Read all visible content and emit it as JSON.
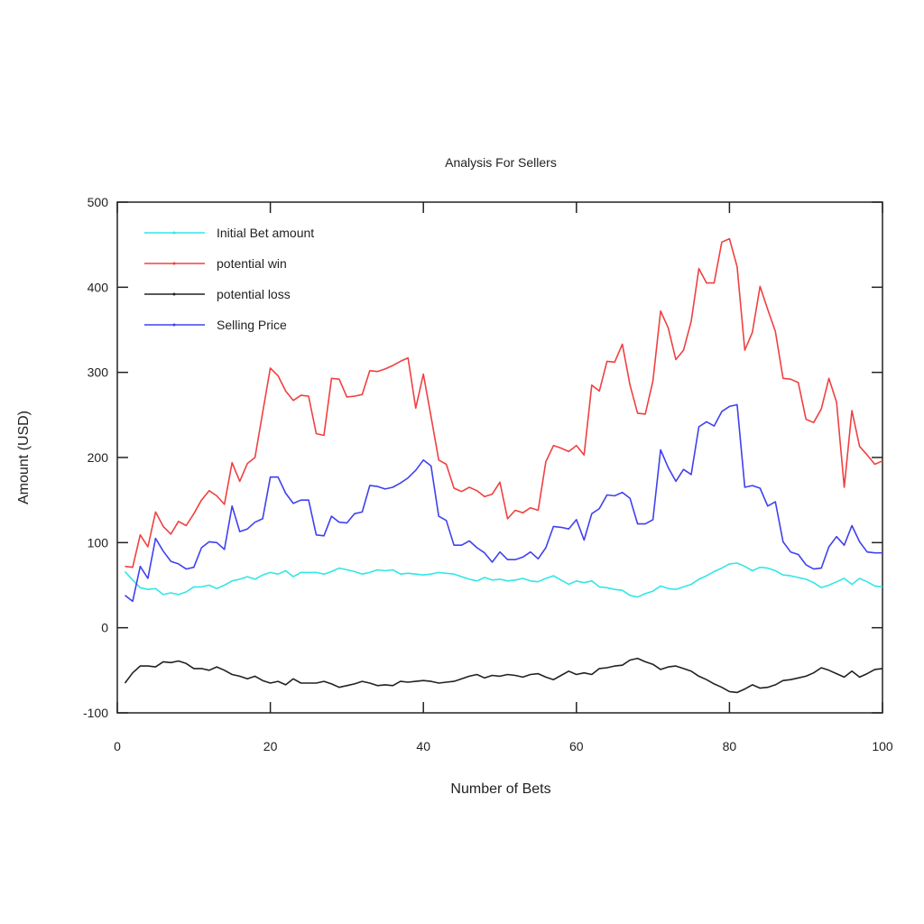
{
  "chart_data": {
    "type": "line",
    "title": "Analysis For Sellers",
    "xlabel": "Number of Bets",
    "ylabel": "Amount (USD)",
    "xlim": [
      0,
      100
    ],
    "ylim": [
      -100,
      500
    ],
    "xticks": [
      0,
      20,
      40,
      60,
      80,
      100
    ],
    "yticks": [
      -100,
      0,
      100,
      200,
      300,
      400,
      500
    ],
    "grid": false,
    "legend_position": "top-left",
    "x": [
      1,
      2,
      3,
      4,
      5,
      6,
      7,
      8,
      9,
      10,
      11,
      12,
      13,
      14,
      15,
      16,
      17,
      18,
      19,
      20,
      21,
      22,
      23,
      24,
      25,
      26,
      27,
      28,
      29,
      30,
      31,
      32,
      33,
      34,
      35,
      36,
      37,
      38,
      39,
      40,
      41,
      42,
      43,
      44,
      45,
      46,
      47,
      48,
      49,
      50,
      51,
      52,
      53,
      54,
      55,
      56,
      57,
      58,
      59,
      60,
      61,
      62,
      63,
      64,
      65,
      66,
      67,
      68,
      69,
      70,
      71,
      72,
      73,
      74,
      75,
      76,
      77,
      78,
      79,
      80,
      81,
      82,
      83,
      84,
      85,
      86,
      87,
      88,
      89,
      90,
      91,
      92,
      93,
      94,
      95,
      96,
      97,
      98,
      99,
      100
    ],
    "series": [
      {
        "name": "Initial Bet amount",
        "color": "#33e6e6",
        "values": [
          66,
          56,
          47,
          45,
          46,
          39,
          41,
          39,
          42,
          48,
          48,
          50,
          46,
          50,
          55,
          57,
          60,
          57,
          62,
          65,
          63,
          67,
          60,
          65,
          65,
          65,
          63,
          66,
          70,
          68,
          66,
          63,
          65,
          68,
          67,
          68,
          63,
          64,
          63,
          62,
          63,
          65,
          64,
          63,
          60,
          57,
          55,
          59,
          56,
          57,
          55,
          56,
          58,
          55,
          54,
          58,
          61,
          56,
          51,
          55,
          53,
          55,
          48,
          47,
          45,
          44,
          38,
          36,
          40,
          43,
          49,
          46,
          45,
          48,
          51,
          57,
          61,
          66,
          70,
          75,
          76,
          72,
          67,
          71,
          70,
          67,
          62,
          61,
          59,
          57,
          53,
          47,
          50,
          54,
          58,
          51,
          58,
          54,
          49,
          48
        ]
      },
      {
        "name": "potential win",
        "color": "#f04040",
        "values": [
          72,
          71,
          109,
          95,
          136,
          119,
          110,
          125,
          120,
          134,
          150,
          161,
          155,
          145,
          194,
          172,
          193,
          200,
          253,
          305,
          296,
          278,
          267,
          273,
          272,
          228,
          226,
          293,
          292,
          271,
          272,
          274,
          302,
          301,
          304,
          308,
          313,
          317,
          258,
          298,
          248,
          197,
          192,
          164,
          160,
          165,
          161,
          154,
          157,
          171,
          128,
          138,
          135,
          141,
          138,
          195,
          214,
          211,
          207,
          214,
          203,
          285,
          278,
          313,
          312,
          333,
          285,
          252,
          251,
          290,
          372,
          352,
          315,
          326,
          360,
          422,
          405,
          405,
          453,
          457,
          424,
          326,
          347,
          401,
          374,
          348,
          293,
          292,
          288,
          245,
          241,
          257,
          293,
          265,
          165,
          255,
          213,
          203,
          192,
          196
        ]
      },
      {
        "name": "potential loss",
        "color": "#222222",
        "values": [
          -65,
          -53,
          -45,
          -45,
          -46,
          -40,
          -41,
          -39,
          -42,
          -48,
          -48,
          -50,
          -46,
          -50,
          -55,
          -57,
          -60,
          -57,
          -62,
          -65,
          -63,
          -67,
          -60,
          -65,
          -65,
          -65,
          -63,
          -66,
          -70,
          -68,
          -66,
          -63,
          -65,
          -68,
          -67,
          -68,
          -63,
          -64,
          -63,
          -62,
          -63,
          -65,
          -64,
          -63,
          -60,
          -57,
          -55,
          -59,
          -56,
          -57,
          -55,
          -56,
          -58,
          -55,
          -54,
          -58,
          -61,
          -56,
          -51,
          -55,
          -53,
          -55,
          -48,
          -47,
          -45,
          -44,
          -38,
          -36,
          -40,
          -43,
          -49,
          -46,
          -45,
          -48,
          -51,
          -57,
          -61,
          -66,
          -70,
          -75,
          -76,
          -72,
          -67,
          -71,
          -70,
          -67,
          -62,
          -61,
          -59,
          -57,
          -53,
          -47,
          -50,
          -54,
          -58,
          -51,
          -58,
          -54,
          -49,
          -48
        ]
      },
      {
        "name": "Selling Price",
        "color": "#4040f0",
        "values": [
          38,
          31,
          72,
          58,
          105,
          90,
          78,
          75,
          69,
          71,
          94,
          101,
          100,
          92,
          143,
          113,
          116,
          124,
          128,
          177,
          177,
          158,
          146,
          150,
          150,
          109,
          108,
          131,
          124,
          123,
          134,
          136,
          167,
          166,
          163,
          165,
          170,
          176,
          185,
          197,
          190,
          131,
          126,
          97,
          97,
          102,
          94,
          88,
          77,
          89,
          80,
          80,
          83,
          89,
          81,
          94,
          119,
          118,
          116,
          127,
          103,
          134,
          140,
          156,
          155,
          159,
          152,
          122,
          122,
          127,
          209,
          188,
          172,
          186,
          180,
          236,
          242,
          237,
          254,
          260,
          262,
          165,
          167,
          164,
          143,
          148,
          101,
          89,
          86,
          74,
          69,
          70,
          95,
          107,
          97,
          120,
          101,
          89,
          88,
          88
        ]
      }
    ]
  }
}
